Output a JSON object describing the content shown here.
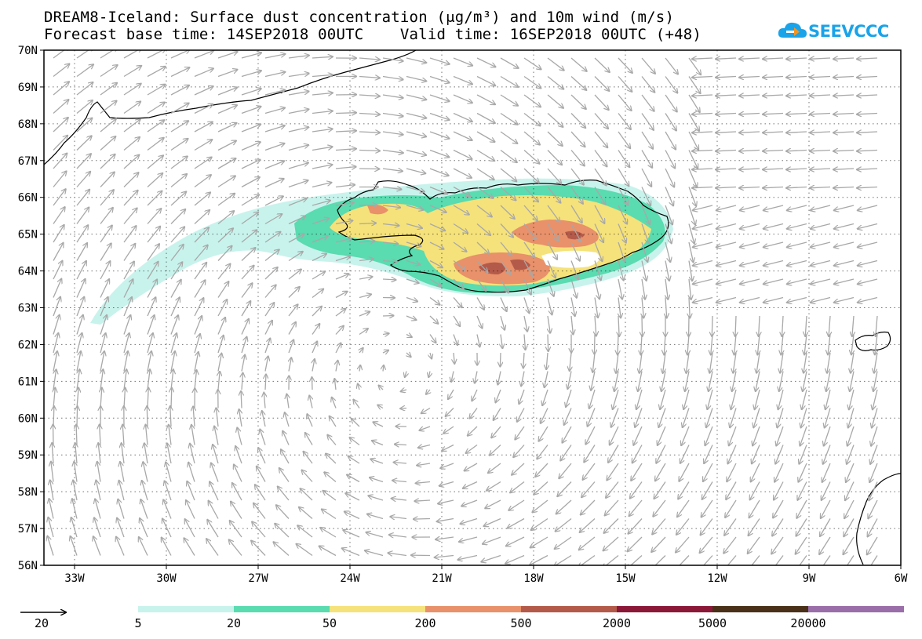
{
  "title": {
    "line1": "DREAM8-Iceland: Surface dust concentration (μg/m³) and 10m wind (m/s)",
    "line2": "Forecast base time: 14SEP2018 00UTC    Valid time: 16SEP2018 00UTC (+48)"
  },
  "logo": {
    "text": "SEEVCCC",
    "icon": "cloud-icon"
  },
  "map": {
    "projection": "lat-lon",
    "lon_range": [
      -34,
      -6
    ],
    "lat_range": [
      56,
      70
    ],
    "lon_ticks": [
      "33W",
      "30W",
      "27W",
      "24W",
      "21W",
      "18W",
      "15W",
      "12W",
      "9W",
      "6W"
    ],
    "lat_ticks": [
      "70N",
      "69N",
      "68N",
      "67N",
      "66N",
      "65N",
      "64N",
      "63N",
      "62N",
      "61N",
      "60N",
      "59N",
      "58N",
      "57N",
      "56N"
    ],
    "gridlines": "dotted",
    "wind_arrow_color": "#a8a8a8",
    "coastline_color": "#000000"
  },
  "legend": {
    "wind_reference": "20",
    "levels": [
      "5",
      "20",
      "50",
      "200",
      "500",
      "2000",
      "5000",
      "20000"
    ],
    "colors": [
      "#c8f3ec",
      "#5adbb0",
      "#f5e27a",
      "#e8916a",
      "#b45a4a",
      "#8c1838",
      "#4a3018",
      "#9a6ea8"
    ]
  }
}
